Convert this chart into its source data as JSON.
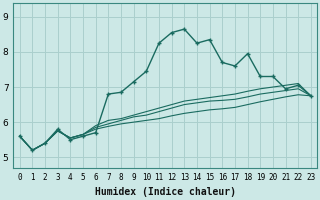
{
  "xlabel": "Humidex (Indice chaleur)",
  "ylabel": "",
  "background_color": "#cce8e6",
  "grid_color": "#aacfcd",
  "line_color": "#1a6b60",
  "xlim": [
    -0.5,
    23.5
  ],
  "ylim": [
    4.7,
    9.4
  ],
  "yticks": [
    5,
    6,
    7,
    8,
    9
  ],
  "xticks": [
    0,
    1,
    2,
    3,
    4,
    5,
    6,
    7,
    8,
    9,
    10,
    11,
    12,
    13,
    14,
    15,
    16,
    17,
    18,
    19,
    20,
    21,
    22,
    23
  ],
  "series": [
    [
      5.6,
      5.2,
      5.4,
      5.8,
      5.5,
      5.6,
      5.7,
      6.8,
      6.85,
      7.15,
      7.45,
      8.25,
      8.55,
      8.65,
      8.25,
      8.35,
      7.7,
      7.6,
      7.95,
      7.3,
      7.3,
      6.95,
      7.05,
      6.75
    ],
    [
      5.6,
      5.2,
      5.4,
      5.75,
      5.55,
      5.65,
      5.9,
      6.05,
      6.1,
      6.2,
      6.3,
      6.4,
      6.5,
      6.6,
      6.65,
      6.7,
      6.75,
      6.8,
      6.88,
      6.95,
      7.0,
      7.05,
      7.1,
      6.75
    ],
    [
      5.6,
      5.2,
      5.4,
      5.75,
      5.55,
      5.65,
      5.85,
      5.95,
      6.05,
      6.15,
      6.2,
      6.3,
      6.4,
      6.5,
      6.55,
      6.6,
      6.62,
      6.65,
      6.72,
      6.8,
      6.85,
      6.9,
      6.95,
      6.75
    ],
    [
      5.6,
      5.2,
      5.4,
      5.75,
      5.55,
      5.65,
      5.8,
      5.88,
      5.95,
      6.0,
      6.05,
      6.1,
      6.18,
      6.25,
      6.3,
      6.35,
      6.38,
      6.42,
      6.5,
      6.58,
      6.65,
      6.72,
      6.78,
      6.75
    ]
  ],
  "xlabel_fontsize": 7,
  "ylabel_fontsize": 7,
  "xtick_fontsize": 5.5,
  "ytick_fontsize": 6.5
}
